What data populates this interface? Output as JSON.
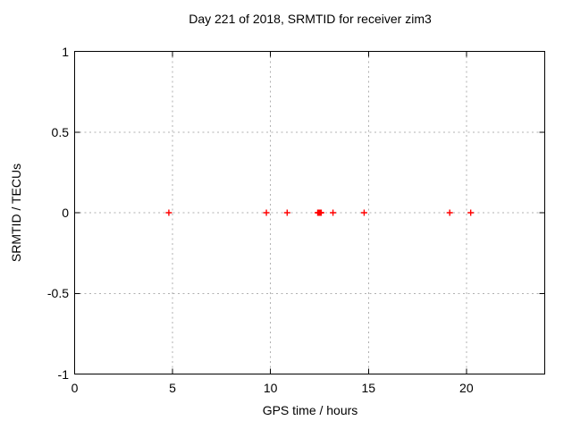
{
  "window": {
    "background": "#ffffff"
  },
  "chart_data": {
    "type": "scatter",
    "title": "Day 221 of 2018, SRMTID for receiver zim3",
    "xlabel": "GPS time / hours",
    "ylabel": "SRMTID / TECUs",
    "xlim": [
      0,
      24
    ],
    "ylim": [
      -1,
      1
    ],
    "xtick_values": [
      0,
      5,
      10,
      15,
      20
    ],
    "xtick_labels": [
      "0",
      "5",
      "10",
      "15",
      "20"
    ],
    "ytick_values": [
      -1,
      -0.5,
      0,
      0.5,
      1
    ],
    "ytick_labels": [
      "-1",
      "-0.5",
      "0",
      "0.5",
      "1"
    ],
    "grid": "on",
    "grid_style": "dotted",
    "legend": "none",
    "marker": "plus",
    "series": [
      {
        "name": "SRMTID",
        "color": "#ff0000",
        "x": [
          4.81,
          9.79,
          10.85,
          12.41,
          12.46,
          12.5,
          12.55,
          12.59,
          13.19,
          14.78,
          19.15,
          20.22
        ],
        "y": [
          0,
          0,
          0,
          0,
          0,
          0,
          0,
          0,
          0,
          0,
          0,
          0
        ]
      }
    ]
  },
  "colors": {
    "marker": "#ff0000",
    "grid": "#b0b0b0",
    "axis": "#000000",
    "text": "#000000",
    "background": "#ffffff"
  }
}
